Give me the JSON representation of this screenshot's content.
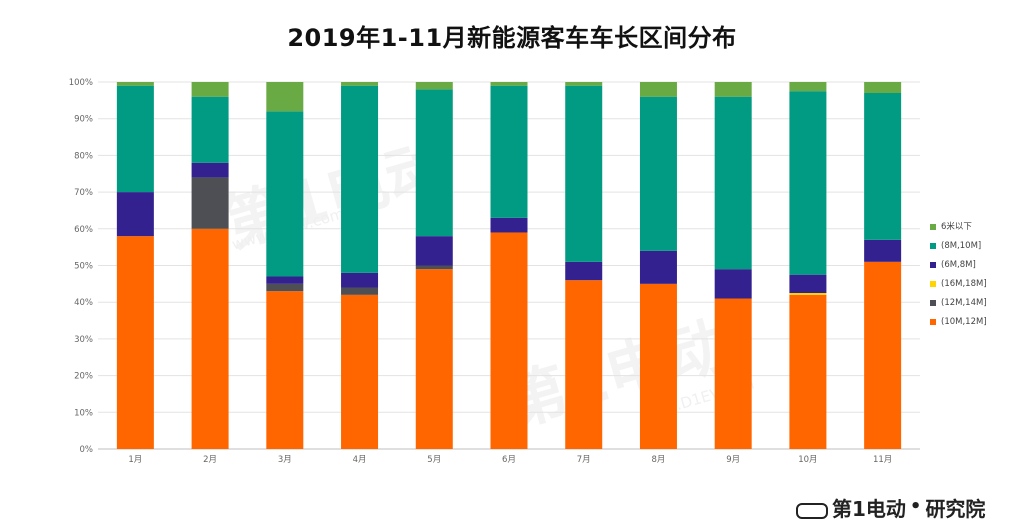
{
  "header": {
    "title": "2019年1-11月新能源客车车长区间分布"
  },
  "watermark": {
    "mark_text": "第1电动",
    "url_text": "www.D1EV.com"
  },
  "footer": {
    "brand_text": "第1电动",
    "dot": "•",
    "research_text": "研究院"
  },
  "chart_data": {
    "type": "bar",
    "stacked": true,
    "percent": true,
    "title": "2019年1-11月新能源客车车长区间分布",
    "categories": [
      "1月",
      "2月",
      "3月",
      "4月",
      "5月",
      "6月",
      "7月",
      "8月",
      "9月",
      "10月",
      "11月"
    ],
    "y_ticks": [
      "0%",
      "10%",
      "20%",
      "30%",
      "40%",
      "50%",
      "60%",
      "70%",
      "80%",
      "90%",
      "100%"
    ],
    "ylim": [
      0,
      100
    ],
    "grid": true,
    "legend_position": "right",
    "series": [
      {
        "name": "(10M,12M]",
        "color": "#ff6600",
        "values": [
          58,
          60,
          43,
          42,
          49,
          59,
          46,
          45,
          41,
          42,
          51
        ]
      },
      {
        "name": "(12M,14M]",
        "color": "#4d4f54",
        "values": [
          0,
          14,
          2,
          2,
          1,
          0,
          0,
          0,
          0,
          0,
          0
        ]
      },
      {
        "name": "(16M,18M]",
        "color": "#ffd400",
        "values": [
          0,
          0,
          0,
          0,
          0,
          0,
          0,
          0,
          0,
          0.5,
          0
        ]
      },
      {
        "name": "(6M,8M]",
        "color": "#33218f",
        "values": [
          12,
          4,
          2,
          4,
          8,
          4,
          5,
          9,
          8,
          5,
          6
        ]
      },
      {
        "name": "(8M,10M]",
        "color": "#009b82",
        "values": [
          29,
          18,
          45,
          51,
          40,
          36,
          48,
          42,
          47,
          50,
          40
        ]
      },
      {
        "name": "6米以下",
        "color": "#6aaa44",
        "values": [
          1,
          4,
          8,
          1,
          2,
          1,
          1,
          4,
          4,
          2.5,
          3
        ]
      }
    ],
    "legend_order": [
      "6米以下",
      "(8M,10M]",
      "(6M,8M]",
      "(16M,18M]",
      "(12M,14M]",
      "(10M,12M]"
    ]
  }
}
